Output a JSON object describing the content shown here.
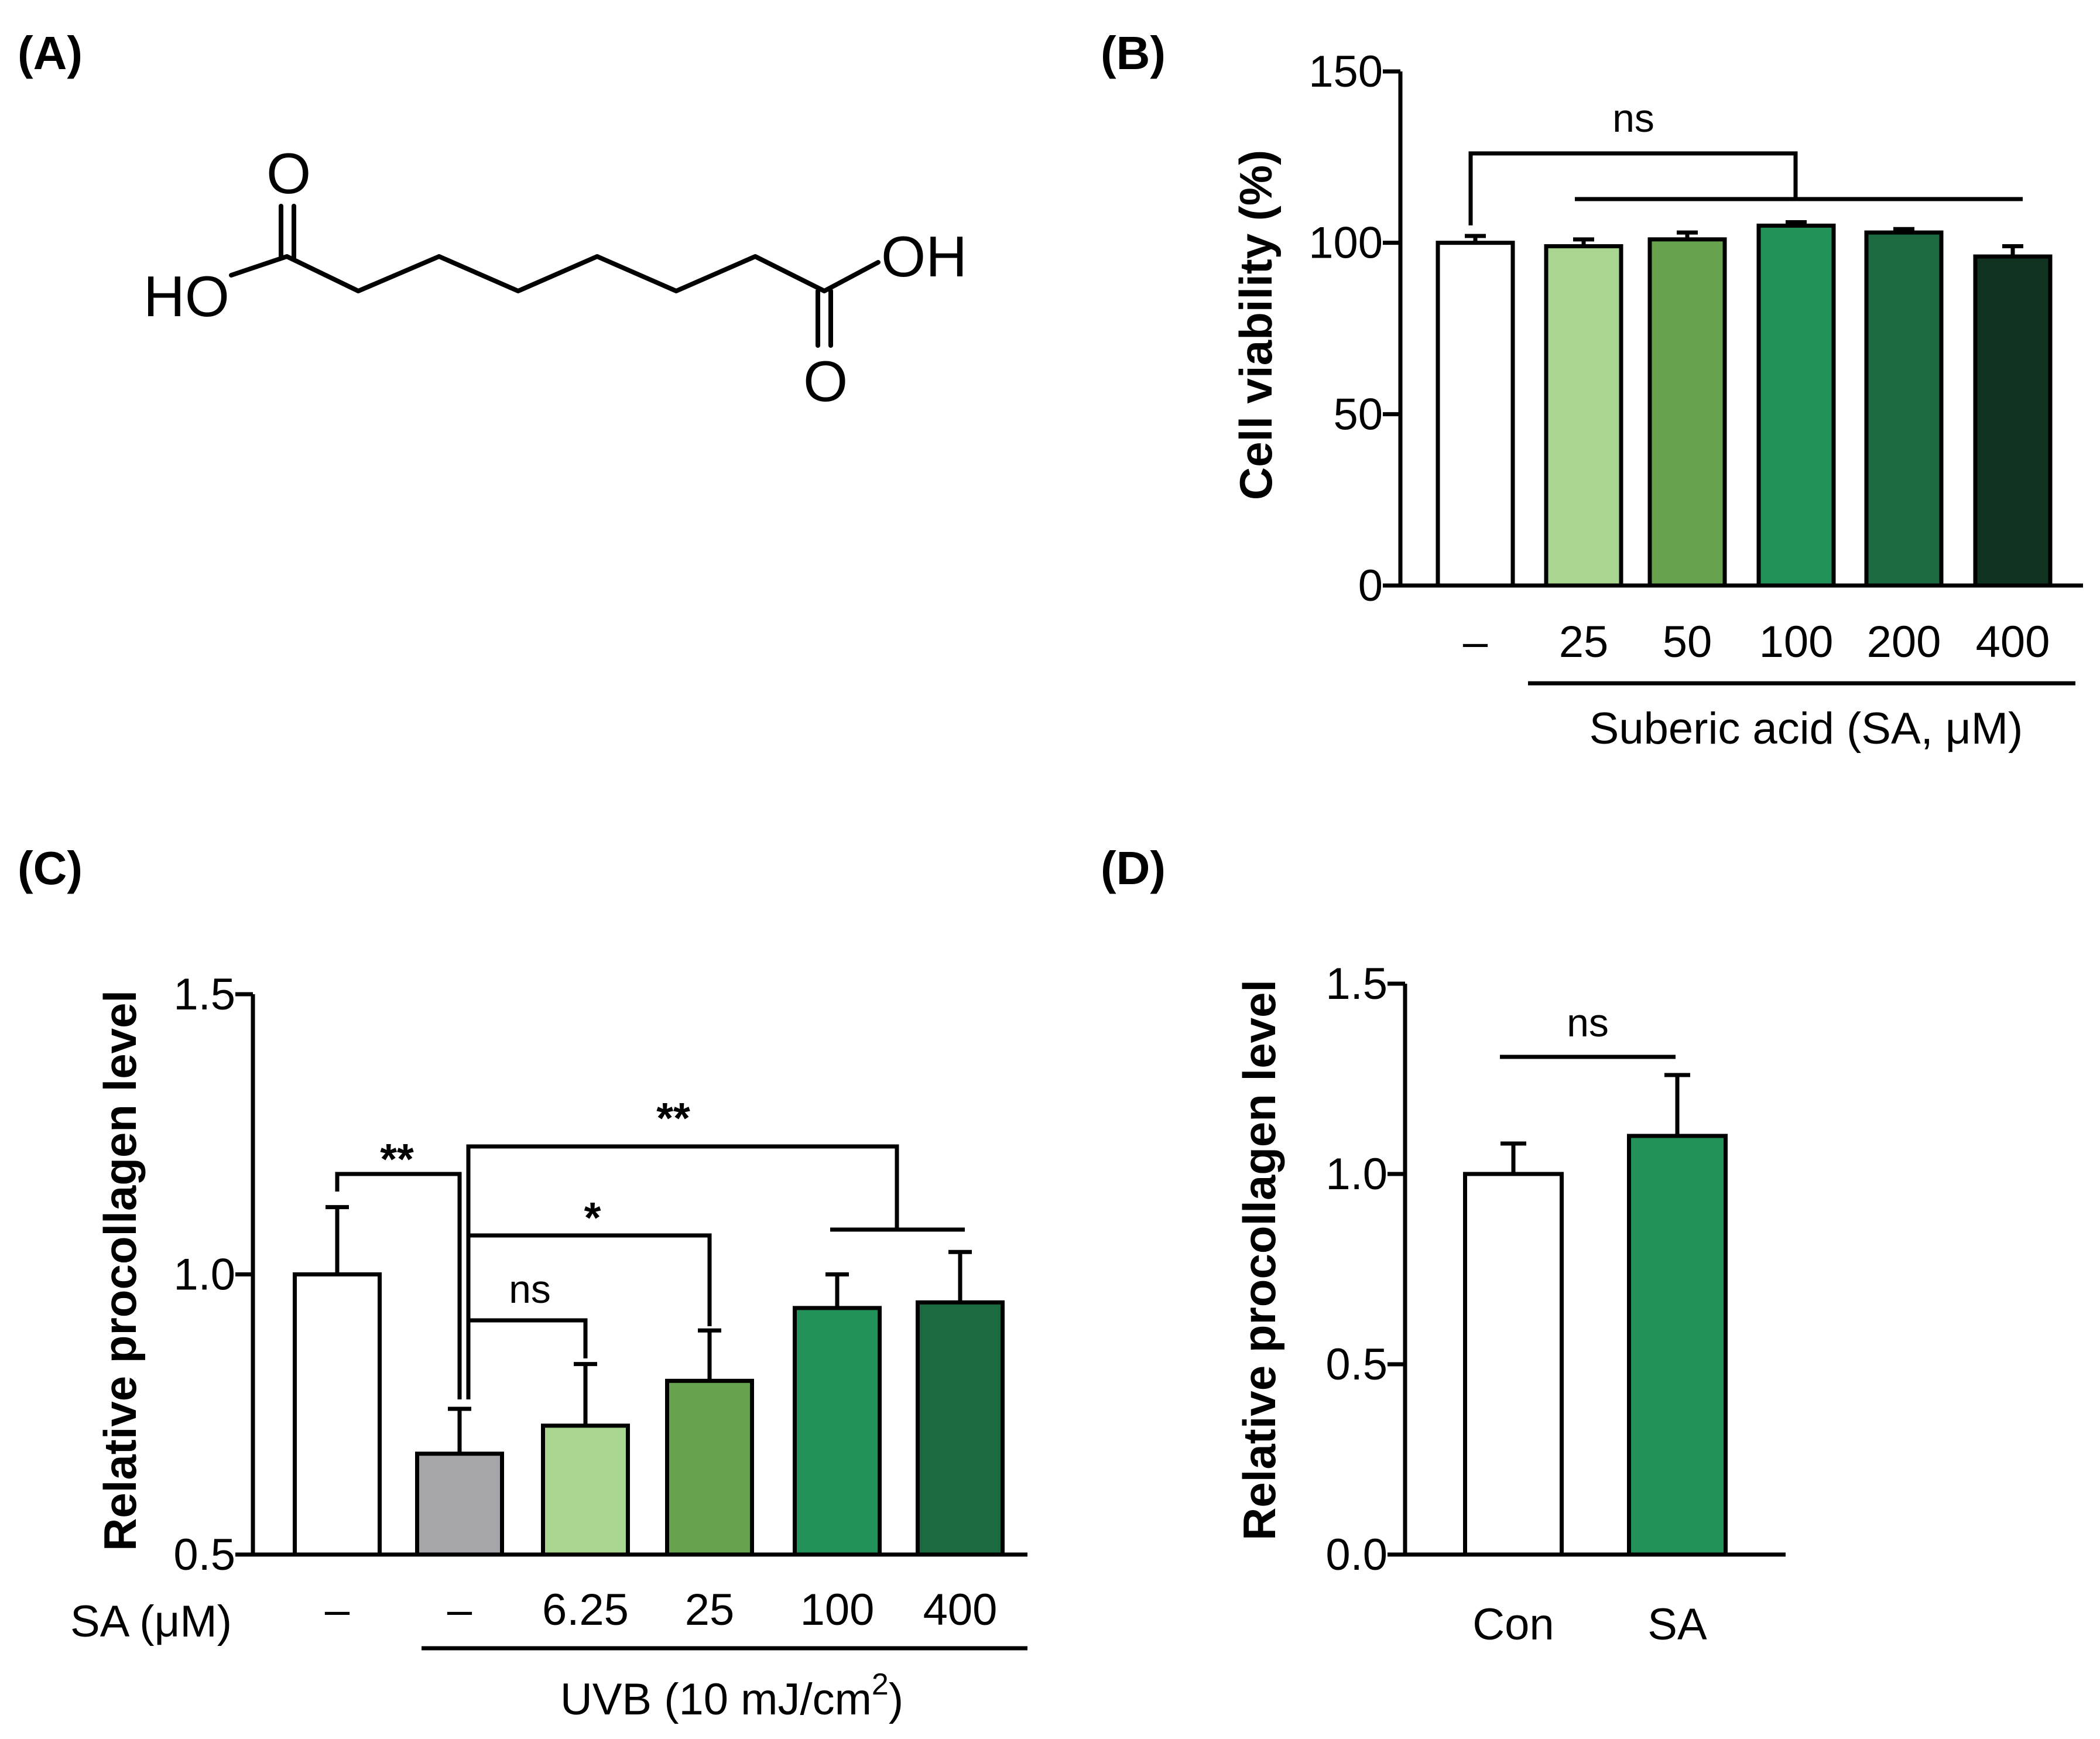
{
  "panels": {
    "A": {
      "label": "(A)",
      "molecule": {
        "name": "Suberic acid",
        "left_group": "HO",
        "right_group": "OH",
        "oxygen": "O"
      }
    },
    "B": {
      "label": "(B)"
    },
    "C": {
      "label": "(C)"
    },
    "D": {
      "label": "(D)"
    }
  },
  "colors": {
    "white": "#ffffff",
    "gray": "#a6a6aa",
    "green1": "#a8d58f",
    "green2": "#67a34f",
    "green3": "#22925a",
    "green4": "#1b6a40",
    "green5": "#0f3320"
  },
  "chart_data": [
    {
      "panel": "B",
      "type": "bar",
      "title": "",
      "ylabel": "Cell viability (%)",
      "xlabel": "Suberic acid (SA, μM)",
      "categories": [
        "–",
        "25",
        "50",
        "100",
        "200",
        "400"
      ],
      "values": [
        100,
        99,
        101,
        105,
        103,
        96
      ],
      "errors": [
        2,
        2,
        2,
        1,
        1,
        3
      ],
      "colors": [
        "#ffffff",
        "#a8d58f",
        "#67a34f",
        "#22925a",
        "#1b6a40",
        "#0f3320"
      ],
      "ylim": [
        0,
        150
      ],
      "yticks": [
        "0",
        "50",
        "100",
        "150"
      ],
      "annotations": [
        {
          "text": "ns",
          "compare": "– vs 25–400"
        }
      ]
    },
    {
      "panel": "C",
      "type": "bar",
      "title": "",
      "ylabel": "Relative procollagen level",
      "row_label": "SA (μM)",
      "categories": [
        "–",
        "–",
        "6.25",
        "25",
        "100",
        "400"
      ],
      "values": [
        1.0,
        0.68,
        0.73,
        0.81,
        0.94,
        0.95
      ],
      "errors": [
        0.12,
        0.08,
        0.11,
        0.09,
        0.06,
        0.09
      ],
      "colors": [
        "#ffffff",
        "#a6a6aa",
        "#a8d58f",
        "#67a34f",
        "#22925a",
        "#1b6a40"
      ],
      "ylim": [
        0.5,
        1.5
      ],
      "yticks": [
        "0.5",
        "1.0",
        "1.5"
      ],
      "group_label": {
        "text": "UVB (10 mJ/cm",
        "sup": "2",
        "close": ")"
      },
      "annotations": [
        {
          "text": "**",
          "compare": "control vs UVB"
        },
        {
          "text": "**",
          "compare": "UVB vs 100, 400"
        },
        {
          "text": "*",
          "compare": "UVB vs 25"
        },
        {
          "text": "ns",
          "compare": "UVB vs 6.25"
        }
      ]
    },
    {
      "panel": "D",
      "type": "bar",
      "title": "",
      "ylabel": "Relative procollagen level",
      "categories": [
        "Con",
        "SA"
      ],
      "values": [
        1.0,
        1.1
      ],
      "errors": [
        0.08,
        0.16
      ],
      "colors": [
        "#ffffff",
        "#22925a"
      ],
      "ylim": [
        0.0,
        1.5
      ],
      "yticks": [
        "0.0",
        "0.5",
        "1.0",
        "1.5"
      ],
      "annotations": [
        {
          "text": "ns",
          "compare": "Con vs SA"
        }
      ]
    }
  ]
}
